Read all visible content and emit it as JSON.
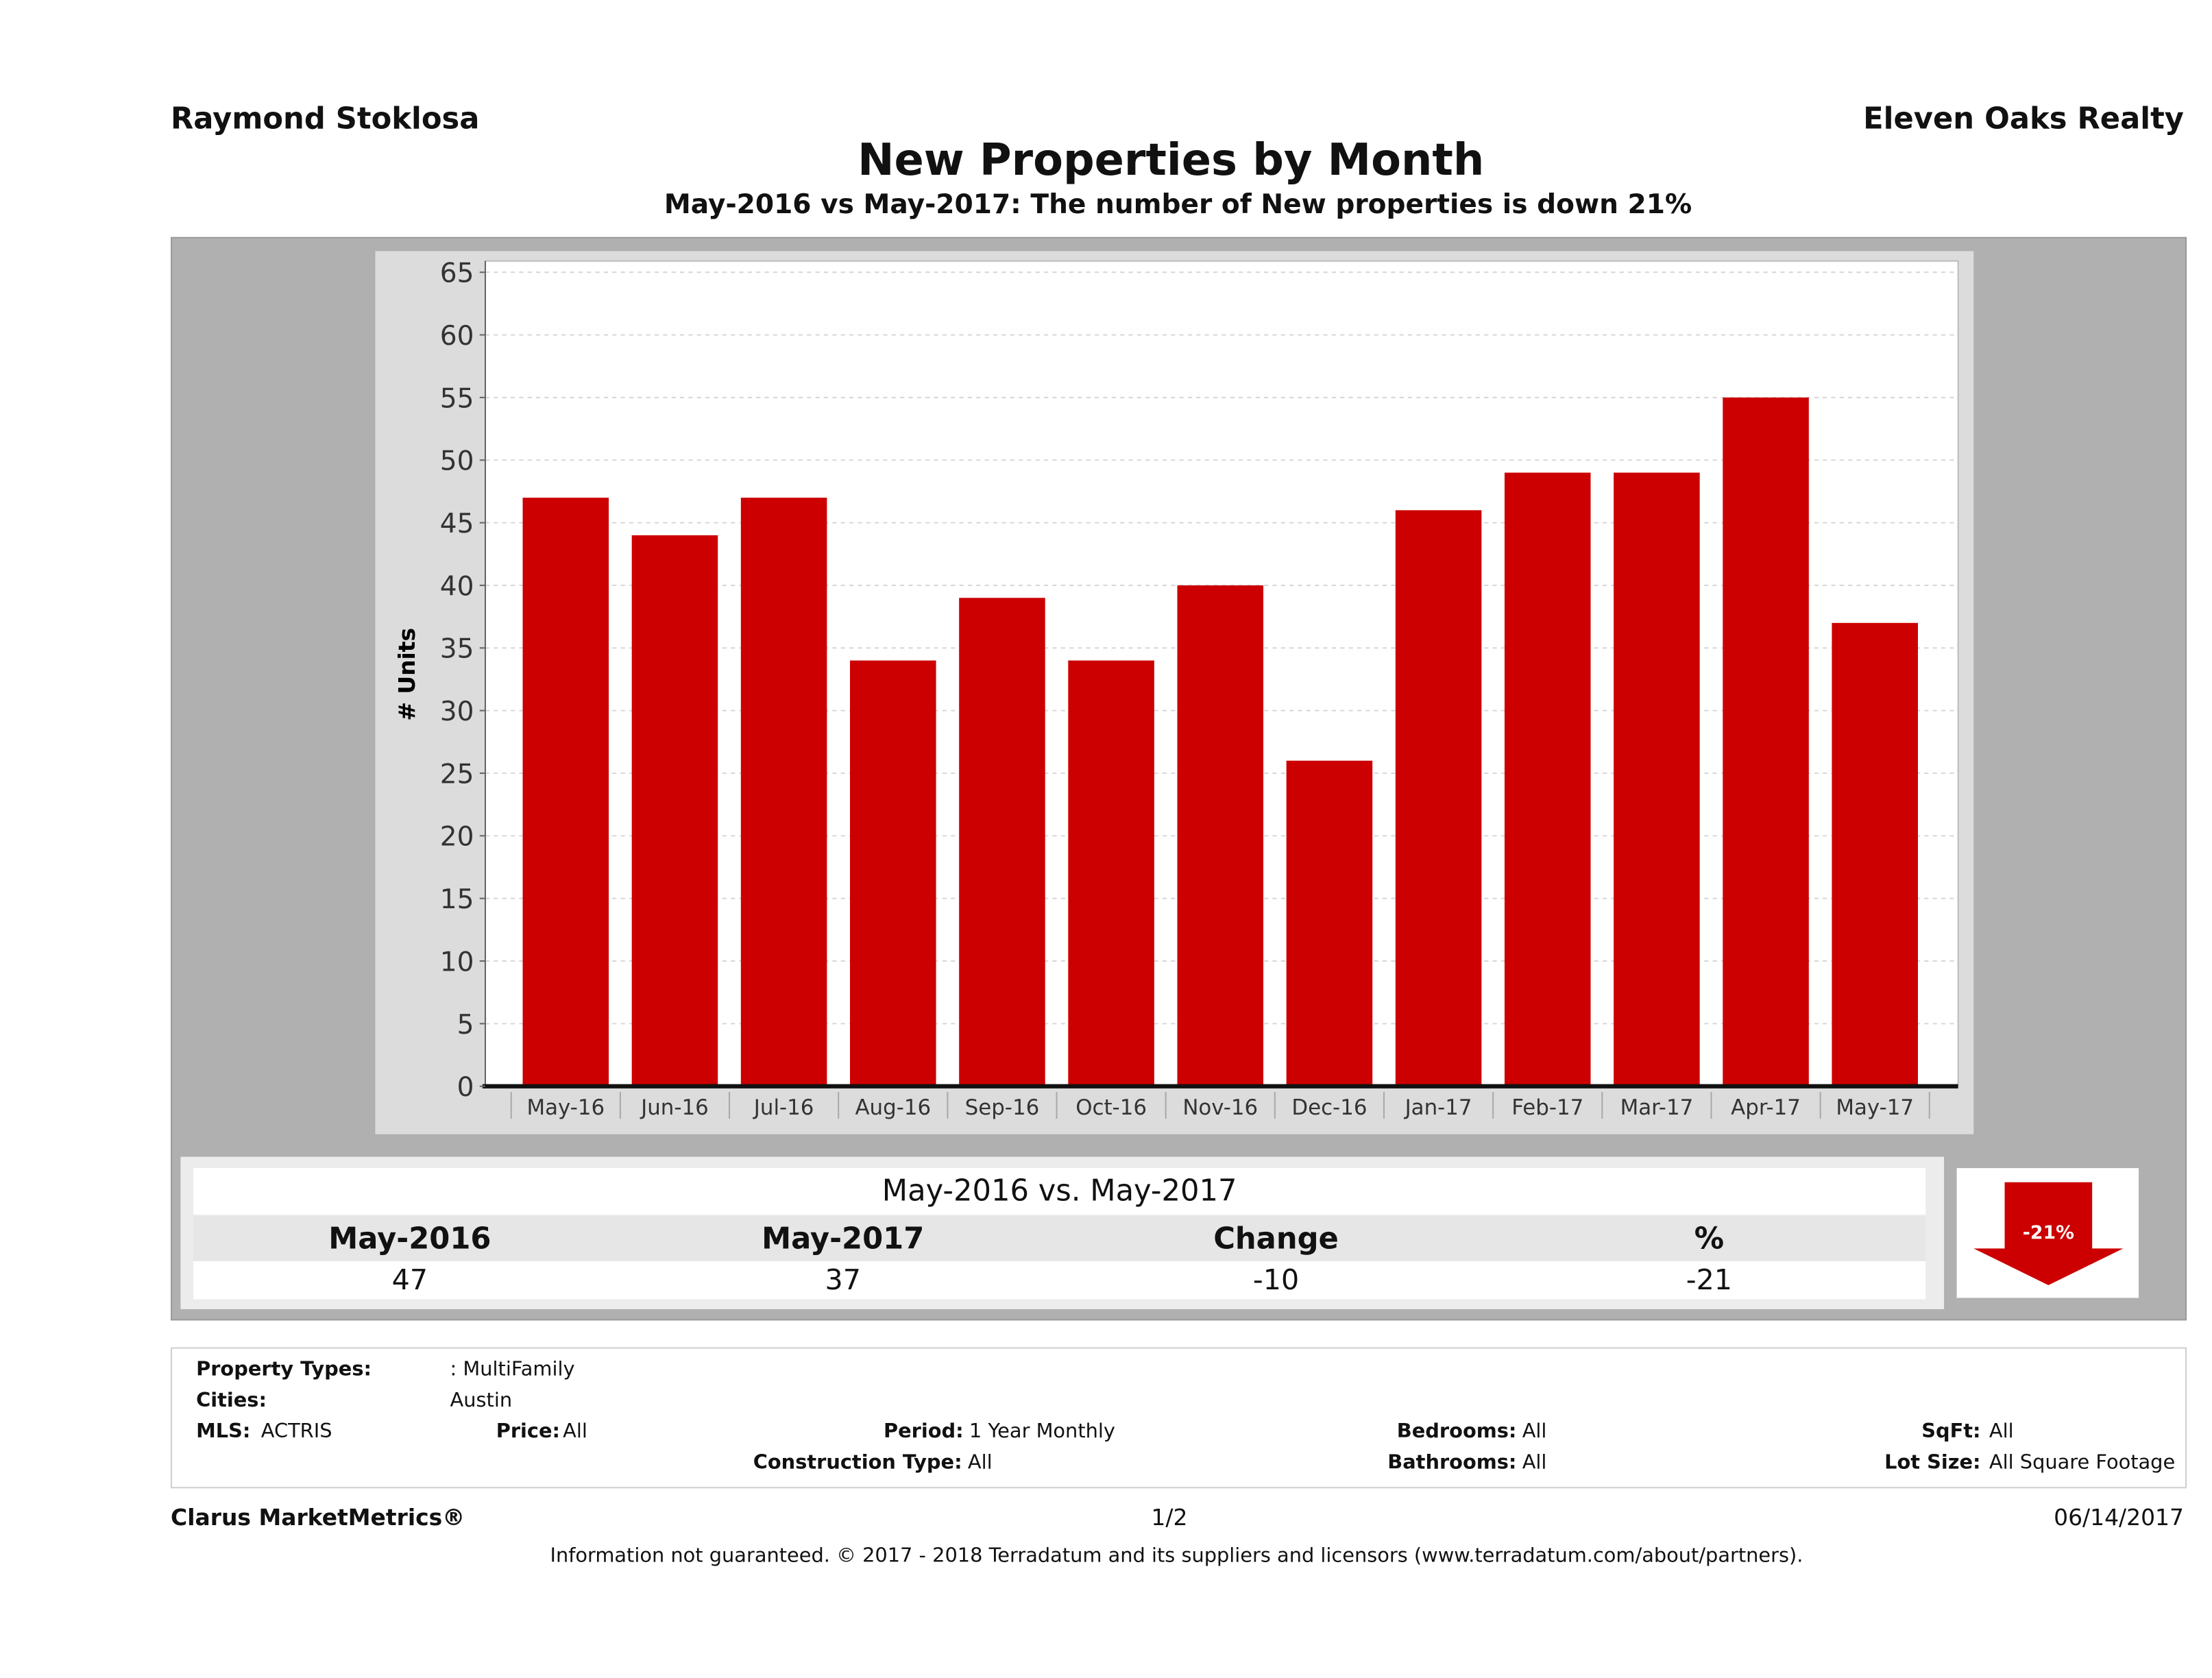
{
  "header": {
    "agent_name": "Raymond Stoklosa",
    "brokerage": "Eleven Oaks Realty",
    "title": "New Properties by Month",
    "subtitle": "May-2016 vs May-2017: The number of New  properties is down 21%"
  },
  "chart_data": {
    "type": "bar",
    "title": "New Properties by Month",
    "xlabel": "",
    "ylabel": "# Units",
    "ylim": [
      0,
      65
    ],
    "yticks": [
      0,
      5,
      10,
      15,
      20,
      25,
      30,
      35,
      40,
      45,
      50,
      55,
      60,
      65
    ],
    "grid": true,
    "categories": [
      "May-16",
      "Jun-16",
      "Jul-16",
      "Aug-16",
      "Sep-16",
      "Oct-16",
      "Nov-16",
      "Dec-16",
      "Jan-17",
      "Feb-17",
      "Mar-17",
      "Apr-17",
      "May-17"
    ],
    "values": [
      47,
      44,
      47,
      34,
      39,
      34,
      40,
      26,
      46,
      49,
      49,
      55,
      37
    ],
    "bar_color": "#cc0000"
  },
  "comparison": {
    "title": "May-2016 vs. May-2017",
    "headers": [
      "May-2016",
      "May-2017",
      "Change",
      "%"
    ],
    "values": [
      "47",
      "37",
      "-10",
      "-21"
    ],
    "badge": "-21%",
    "trend": "down",
    "trend_color": "#cc0000"
  },
  "filters": {
    "property_types_label": "Property Types:",
    "property_types_value": ": MultiFamily",
    "cities_label": "Cities:",
    "cities_value": "Austin",
    "mls_label": "MLS:",
    "mls_value": "ACTRIS",
    "price_label": "Price:",
    "price_value": "All",
    "period_label": "Period:",
    "period_value": "1 Year Monthly",
    "construction_label": "Construction Type:",
    "construction_value": "All",
    "bedrooms_label": "Bedrooms:",
    "bedrooms_value": "All",
    "bathrooms_label": "Bathrooms:",
    "bathrooms_value": "All",
    "sqft_label": "SqFt:",
    "sqft_value": "All",
    "lotsize_label": "Lot Size:",
    "lotsize_value": "All Square Footage"
  },
  "footer": {
    "brand": "Clarus MarketMetrics®",
    "page": "1/2",
    "date": "06/14/2017",
    "disclaimer": "Information not guaranteed. © 2017 - 2018 Terradatum and its suppliers and licensors (www.terradatum.com/about/partners)."
  }
}
